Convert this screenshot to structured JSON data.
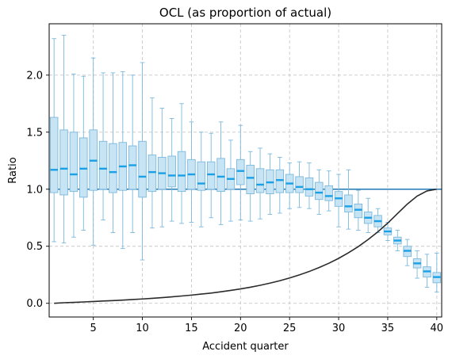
{
  "chart_data": {
    "type": "box",
    "title": "OCL (as proportion of actual)",
    "xlabel": "Accident quarter",
    "ylabel": "Ratio",
    "xlim": [
      0.5,
      40.5
    ],
    "ylim": [
      -0.12,
      2.45
    ],
    "xticks": [
      5,
      10,
      15,
      20,
      25,
      30,
      35,
      40
    ],
    "yticks": [
      0.0,
      0.5,
      1.0,
      1.5,
      2.0
    ],
    "grid": true,
    "reference_line": {
      "y": 1.0,
      "color": "#1f77b4"
    },
    "colors": {
      "box_fill": "#c6e4f4",
      "box_edge": "#7bb8dc",
      "median": "#1aa0e6",
      "whisker": "#7bb8dc",
      "curve": "#2b2b2b"
    },
    "boxes": [
      {
        "x": 1,
        "low": 0.54,
        "q1": 0.97,
        "median": 1.17,
        "q3": 1.63,
        "high": 2.32
      },
      {
        "x": 2,
        "low": 0.53,
        "q1": 0.95,
        "median": 1.18,
        "q3": 1.52,
        "high": 2.35
      },
      {
        "x": 3,
        "low": 0.58,
        "q1": 0.98,
        "median": 1.13,
        "q3": 1.5,
        "high": 2.01
      },
      {
        "x": 4,
        "low": 0.64,
        "q1": 0.93,
        "median": 1.18,
        "q3": 1.45,
        "high": 1.99
      },
      {
        "x": 5,
        "low": 0.51,
        "q1": 0.99,
        "median": 1.25,
        "q3": 1.52,
        "high": 2.15
      },
      {
        "x": 6,
        "low": 0.73,
        "q1": 1.0,
        "median": 1.18,
        "q3": 1.42,
        "high": 2.02
      },
      {
        "x": 7,
        "low": 0.62,
        "q1": 0.97,
        "median": 1.15,
        "q3": 1.4,
        "high": 2.02
      },
      {
        "x": 8,
        "low": 0.48,
        "q1": 0.99,
        "median": 1.2,
        "q3": 1.41,
        "high": 2.03
      },
      {
        "x": 9,
        "low": 0.62,
        "q1": 1.0,
        "median": 1.21,
        "q3": 1.38,
        "high": 2.0
      },
      {
        "x": 10,
        "low": 0.38,
        "q1": 0.93,
        "median": 1.11,
        "q3": 1.42,
        "high": 2.11
      },
      {
        "x": 11,
        "low": 0.66,
        "q1": 0.98,
        "median": 1.15,
        "q3": 1.3,
        "high": 1.8
      },
      {
        "x": 12,
        "low": 0.67,
        "q1": 1.0,
        "median": 1.14,
        "q3": 1.28,
        "high": 1.71
      },
      {
        "x": 13,
        "low": 0.72,
        "q1": 1.02,
        "median": 1.12,
        "q3": 1.29,
        "high": 1.62
      },
      {
        "x": 14,
        "low": 0.7,
        "q1": 0.98,
        "median": 1.12,
        "q3": 1.33,
        "high": 1.75
      },
      {
        "x": 15,
        "low": 0.71,
        "q1": 1.0,
        "median": 1.13,
        "q3": 1.26,
        "high": 1.59
      },
      {
        "x": 16,
        "low": 0.67,
        "q1": 0.99,
        "median": 1.05,
        "q3": 1.24,
        "high": 1.5
      },
      {
        "x": 17,
        "low": 0.75,
        "q1": 1.0,
        "median": 1.13,
        "q3": 1.24,
        "high": 1.49
      },
      {
        "x": 18,
        "low": 0.69,
        "q1": 0.98,
        "median": 1.11,
        "q3": 1.27,
        "high": 1.59
      },
      {
        "x": 19,
        "low": 0.72,
        "q1": 1.0,
        "median": 1.09,
        "q3": 1.18,
        "high": 1.43
      },
      {
        "x": 20,
        "low": 0.73,
        "q1": 1.04,
        "median": 1.16,
        "q3": 1.26,
        "high": 1.56
      },
      {
        "x": 21,
        "low": 0.72,
        "q1": 0.96,
        "median": 1.1,
        "q3": 1.21,
        "high": 1.33
      },
      {
        "x": 22,
        "low": 0.74,
        "q1": 0.97,
        "median": 1.04,
        "q3": 1.18,
        "high": 1.36
      },
      {
        "x": 23,
        "low": 0.78,
        "q1": 0.96,
        "median": 1.06,
        "q3": 1.17,
        "high": 1.31
      },
      {
        "x": 24,
        "low": 0.79,
        "q1": 0.97,
        "median": 1.08,
        "q3": 1.17,
        "high": 1.28
      },
      {
        "x": 25,
        "low": 0.83,
        "q1": 0.97,
        "median": 1.05,
        "q3": 1.13,
        "high": 1.23
      },
      {
        "x": 26,
        "low": 0.84,
        "q1": 0.97,
        "median": 1.02,
        "q3": 1.11,
        "high": 1.24
      },
      {
        "x": 27,
        "low": 0.83,
        "q1": 0.94,
        "median": 1.0,
        "q3": 1.1,
        "high": 1.23
      },
      {
        "x": 28,
        "low": 0.78,
        "q1": 0.91,
        "median": 0.97,
        "q3": 1.06,
        "high": 1.17
      },
      {
        "x": 29,
        "low": 0.81,
        "q1": 0.9,
        "median": 0.94,
        "q3": 1.03,
        "high": 1.16
      },
      {
        "x": 30,
        "low": 0.67,
        "q1": 0.85,
        "median": 0.92,
        "q3": 0.98,
        "high": 1.13
      },
      {
        "x": 31,
        "low": 0.65,
        "q1": 0.8,
        "median": 0.85,
        "q3": 0.95,
        "high": 1.17
      },
      {
        "x": 32,
        "low": 0.64,
        "q1": 0.75,
        "median": 0.82,
        "q3": 0.87,
        "high": 0.99
      },
      {
        "x": 33,
        "low": 0.62,
        "q1": 0.7,
        "median": 0.75,
        "q3": 0.8,
        "high": 0.92
      },
      {
        "x": 34,
        "low": 0.62,
        "q1": 0.67,
        "median": 0.72,
        "q3": 0.77,
        "high": 0.83
      },
      {
        "x": 35,
        "low": 0.55,
        "q1": 0.6,
        "median": 0.63,
        "q3": 0.66,
        "high": 0.71
      },
      {
        "x": 36,
        "low": 0.46,
        "q1": 0.52,
        "median": 0.55,
        "q3": 0.58,
        "high": 0.64
      },
      {
        "x": 37,
        "low": 0.33,
        "q1": 0.41,
        "median": 0.46,
        "q3": 0.5,
        "high": 0.56
      },
      {
        "x": 38,
        "low": 0.22,
        "q1": 0.31,
        "median": 0.35,
        "q3": 0.39,
        "high": 0.46
      },
      {
        "x": 39,
        "low": 0.14,
        "q1": 0.23,
        "median": 0.28,
        "q3": 0.32,
        "high": 0.43
      },
      {
        "x": 40,
        "low": 0.1,
        "q1": 0.18,
        "median": 0.23,
        "q3": 0.27,
        "high": 0.44
      }
    ],
    "line": {
      "x": [
        1,
        2,
        3,
        4,
        5,
        6,
        7,
        8,
        9,
        10,
        11,
        12,
        13,
        14,
        15,
        16,
        17,
        18,
        19,
        20,
        21,
        22,
        23,
        24,
        25,
        26,
        27,
        28,
        29,
        30,
        31,
        32,
        33,
        34,
        35,
        36,
        37,
        38,
        39,
        40
      ],
      "y": [
        0.0,
        0.005,
        0.008,
        0.012,
        0.016,
        0.02,
        0.024,
        0.028,
        0.033,
        0.038,
        0.044,
        0.05,
        0.057,
        0.064,
        0.072,
        0.081,
        0.09,
        0.101,
        0.113,
        0.126,
        0.141,
        0.158,
        0.177,
        0.198,
        0.222,
        0.249,
        0.279,
        0.313,
        0.351,
        0.394,
        0.443,
        0.497,
        0.559,
        0.627,
        0.703,
        0.787,
        0.87,
        0.94,
        0.985,
        1.0
      ]
    }
  }
}
